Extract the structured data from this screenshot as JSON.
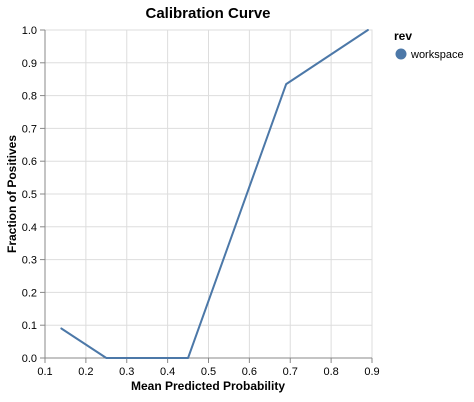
{
  "chart_data": {
    "type": "line",
    "title": "Calibration Curve",
    "xlabel": "Mean Predicted Probability",
    "ylabel": "Fraction of Positives",
    "xlim": [
      0.1,
      0.9
    ],
    "ylim": [
      0.0,
      1.0
    ],
    "x_ticks": [
      0.1,
      0.2,
      0.3,
      0.4,
      0.5,
      0.6,
      0.7,
      0.8,
      0.9
    ],
    "x_tick_labels": [
      "0.1",
      "0.2",
      "0.3",
      "0.4",
      "0.5",
      "0.6",
      "0.7",
      "0.8",
      "0.9"
    ],
    "y_ticks": [
      0.0,
      0.1,
      0.2,
      0.3,
      0.4,
      0.5,
      0.6,
      0.7,
      0.8,
      0.9,
      1.0
    ],
    "y_tick_labels": [
      "0.0",
      "0.1",
      "0.2",
      "0.3",
      "0.4",
      "0.5",
      "0.6",
      "0.7",
      "0.8",
      "0.9",
      "1.0"
    ],
    "grid": true,
    "legend": {
      "title": "rev",
      "placement": "right"
    },
    "series": [
      {
        "name": "workspace",
        "color": "#4c78a8",
        "x": [
          0.14,
          0.25,
          0.45,
          0.69,
          0.89
        ],
        "y": [
          0.09,
          0.0,
          0.0,
          0.835,
          1.0
        ]
      }
    ]
  }
}
